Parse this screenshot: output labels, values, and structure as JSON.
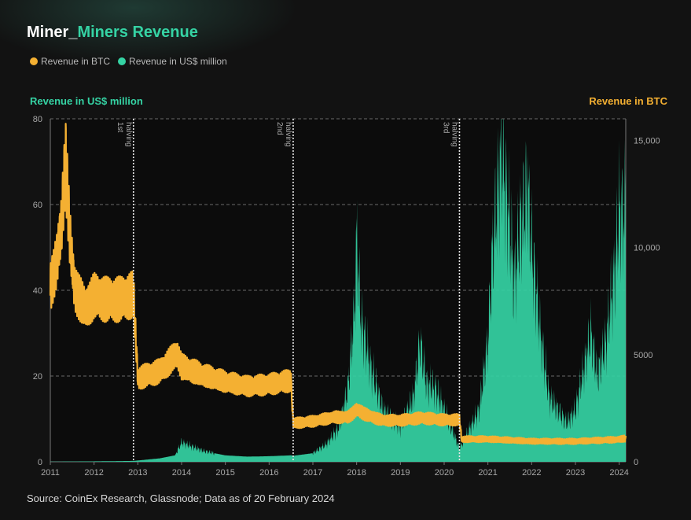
{
  "title": {
    "part1": "Miner_",
    "part2": "Miners Revenue"
  },
  "legend": [
    {
      "label": "Revenue in BTC",
      "color": "#f4b032"
    },
    {
      "label": "Revenue in US$ million",
      "color": "#35d3a4"
    }
  ],
  "source": "Source: CoinEx Research, Glassnode; Data as of 20 February 2024",
  "chart_data": {
    "type": "area",
    "ylabel_left": "Revenue in US$ million",
    "ylabel_right": "Revenue in BTC",
    "xlim": [
      2011.0,
      2024.15
    ],
    "ylim_left": [
      0,
      80
    ],
    "ylim_right": [
      0,
      16000
    ],
    "x_ticks": [
      2011,
      2012,
      2013,
      2014,
      2015,
      2016,
      2017,
      2018,
      2019,
      2020,
      2021,
      2022,
      2023,
      2024
    ],
    "y_ticks_left": [
      0,
      20,
      40,
      60,
      80
    ],
    "y_ticks_right": [
      0,
      5000,
      10000,
      15000
    ],
    "y_tick_labels_right": [
      "0",
      "5000",
      "10,000",
      "15,000"
    ],
    "grid": "horizontal dashed",
    "halvings": [
      {
        "x": 2012.9,
        "label1": "1st",
        "label2": "halving"
      },
      {
        "x": 2016.55,
        "label1": "2nd",
        "label2": "halving"
      },
      {
        "x": 2020.35,
        "label1": "3rd",
        "label2": "halving"
      }
    ],
    "series": [
      {
        "name": "Revenue in US$ million",
        "axis": "left",
        "color": "#35d3a4",
        "x": [
          2011.0,
          2012.0,
          2012.9,
          2013.0,
          2013.5,
          2013.85,
          2014.0,
          2014.5,
          2015.0,
          2015.5,
          2016.0,
          2016.5,
          2016.55,
          2017.0,
          2017.3,
          2017.6,
          2017.8,
          2017.95,
          2018.0,
          2018.1,
          2018.3,
          2018.6,
          2019.0,
          2019.3,
          2019.45,
          2019.6,
          2019.8,
          2020.0,
          2020.2,
          2020.35,
          2020.5,
          2020.8,
          2021.0,
          2021.1,
          2021.3,
          2021.35,
          2021.5,
          2021.6,
          2021.75,
          2021.85,
          2021.9,
          2022.0,
          2022.2,
          2022.4,
          2022.6,
          2022.8,
          2023.0,
          2023.2,
          2023.35,
          2023.5,
          2023.7,
          2023.9,
          2024.0,
          2024.15
        ],
        "values": [
          0.05,
          0.1,
          0.2,
          0.3,
          0.8,
          1.5,
          4.5,
          2.5,
          1.5,
          1.2,
          1.3,
          1.5,
          1.4,
          2.0,
          4.0,
          8.0,
          17.0,
          35.0,
          52.0,
          33.0,
          23.0,
          12.0,
          8.0,
          15.0,
          28.0,
          18.0,
          17.0,
          12.0,
          7.0,
          3.0,
          6.0,
          12.0,
          28.0,
          48.0,
          72.0,
          70.0,
          55.0,
          42.0,
          56.0,
          60.0,
          65.0,
          50.0,
          30.0,
          15.0,
          12.0,
          9.0,
          12.0,
          22.0,
          30.0,
          20.0,
          28.0,
          45.0,
          58.0,
          58.0
        ]
      },
      {
        "name": "Revenue in BTC",
        "axis": "right",
        "color": "#f4b032",
        "x": [
          2011.0,
          2011.15,
          2011.25,
          2011.35,
          2011.45,
          2011.55,
          2011.8,
          2012.0,
          2012.3,
          2012.6,
          2012.9,
          2013.0,
          2013.5,
          2013.9,
          2014.0,
          2014.5,
          2015.0,
          2015.5,
          2016.0,
          2016.5,
          2016.55,
          2017.0,
          2017.5,
          2017.8,
          2018.0,
          2018.3,
          2018.6,
          2019.0,
          2019.5,
          2020.0,
          2020.35,
          2020.4,
          2021.0,
          2021.5,
          2022.0,
          2022.5,
          2023.0,
          2023.5,
          2024.0,
          2024.15
        ],
        "values": [
          8200,
          9500,
          11000,
          14200,
          10500,
          8200,
          7200,
          7800,
          7600,
          7600,
          7800,
          3900,
          4200,
          5000,
          4400,
          4000,
          3700,
          3500,
          3600,
          3800,
          1800,
          1900,
          2100,
          2100,
          2450,
          2150,
          1950,
          1950,
          2050,
          1950,
          1950,
          1050,
          1050,
          1000,
          950,
          950,
          950,
          1000,
          1050,
          1100
        ]
      }
    ]
  }
}
